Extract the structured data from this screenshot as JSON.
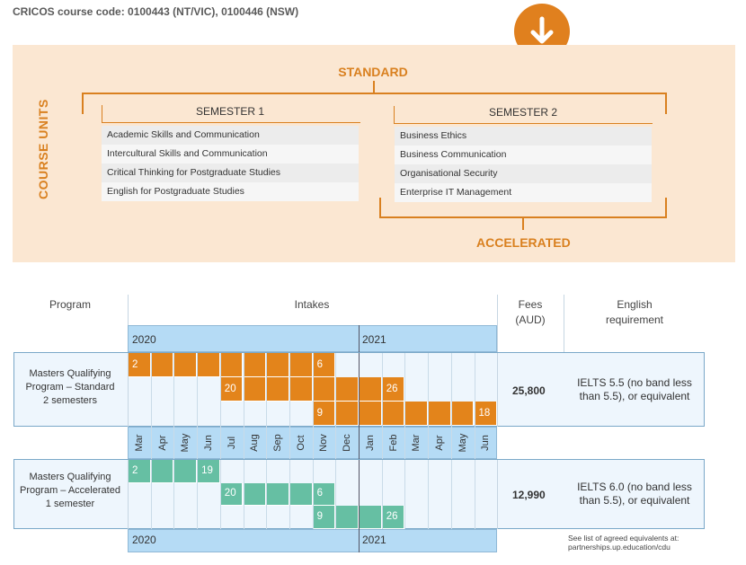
{
  "cricos": "CRICOS course code: 0100443 (NT/VIC), 0100446 (NSW)",
  "units": {
    "vertical_label": "COURSE UNITS",
    "standard_label": "STANDARD",
    "accelerated_label": "ACCELERATED",
    "semester1": {
      "title": "SEMESTER 1",
      "items": [
        "Academic Skills and Communication",
        "Intercultural Skills and Communication",
        "Critical Thinking for Postgraduate Studies",
        "English for Postgraduate Studies"
      ]
    },
    "semester2": {
      "title": "SEMESTER 2",
      "items": [
        "Business Ethics",
        "Business Communication",
        "Organisational Security",
        "Enterprise IT Management"
      ]
    }
  },
  "table": {
    "col_program": "Program",
    "col_intakes": "Intakes",
    "col_fees_1": "Fees",
    "col_fees_2": "(AUD)",
    "col_english_1": "English",
    "col_english_2": "requirement",
    "year_2020": "2020",
    "year_2021": "2021",
    "months": [
      "Mar",
      "Apr",
      "May",
      "Jun",
      "Jul",
      "Aug",
      "Sep",
      "Oct",
      "Nov",
      "Dec",
      "Jan",
      "Feb",
      "Mar",
      "Apr",
      "May",
      "Jun"
    ],
    "standard": {
      "name_1": "Masters Qualifying",
      "name_2": "Program – Standard",
      "name_3": "2 semesters",
      "fee": "25,800",
      "english_1": "IELTS 5.5 (no band less",
      "english_2": "than 5.5), or equivalent",
      "rows": [
        {
          "start": 0,
          "end": 8,
          "start_label": "2",
          "end_label": "6"
        },
        {
          "start": 4,
          "end": 11,
          "start_label": "20",
          "end_label": "26"
        },
        {
          "start": 8,
          "end": 15,
          "start_label": "9",
          "end_label": "18"
        }
      ]
    },
    "accelerated": {
      "name_1": "Masters Qualifying",
      "name_2": "Program – Accelerated",
      "name_3": "1 semester",
      "fee": "12,990",
      "english_1": "IELTS 6.0 (no band less",
      "english_2": "than 5.5), or equivalent",
      "rows": [
        {
          "start": 0,
          "end": 3,
          "start_label": "2",
          "end_label": "19"
        },
        {
          "start": 4,
          "end": 8,
          "start_label": "20",
          "end_label": "6"
        },
        {
          "start": 8,
          "end": 11,
          "start_label": "9",
          "end_label": "26"
        }
      ]
    },
    "note_1": "See list of agreed equivalents at:",
    "note_2": "partnerships.up.education/cdu"
  },
  "colors": {
    "orange": "#e3841b",
    "green": "#66bfa3",
    "blue": "#b5dbf5",
    "panel": "#fbe7d2"
  }
}
